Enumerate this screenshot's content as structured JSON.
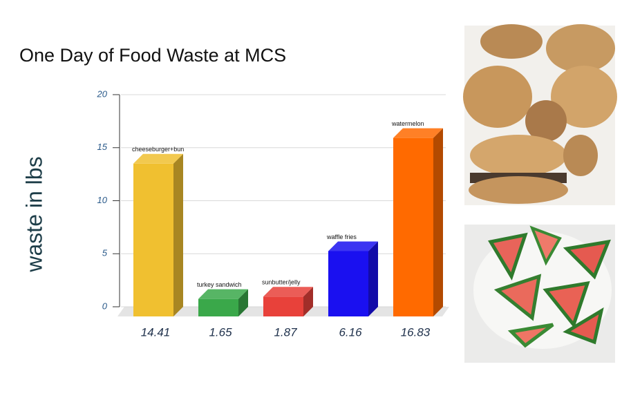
{
  "chart_data": {
    "type": "bar3d",
    "title": "One Day of Food Waste at MCS",
    "y_label": "waste in lbs",
    "categories": [
      "cheeseburger+bun",
      "turkey sandwich",
      "sunbutter/jelly",
      "waffle fries",
      "watermelon"
    ],
    "values": [
      14.41,
      1.65,
      1.87,
      6.16,
      16.83
    ],
    "colors": [
      "#f0c030",
      "#3aa84a",
      "#e8413a",
      "#1a10f0",
      "#ff6a00"
    ],
    "ylim": [
      0,
      20
    ],
    "yticks": [
      0,
      5,
      10,
      15,
      20
    ],
    "grid": true
  }
}
